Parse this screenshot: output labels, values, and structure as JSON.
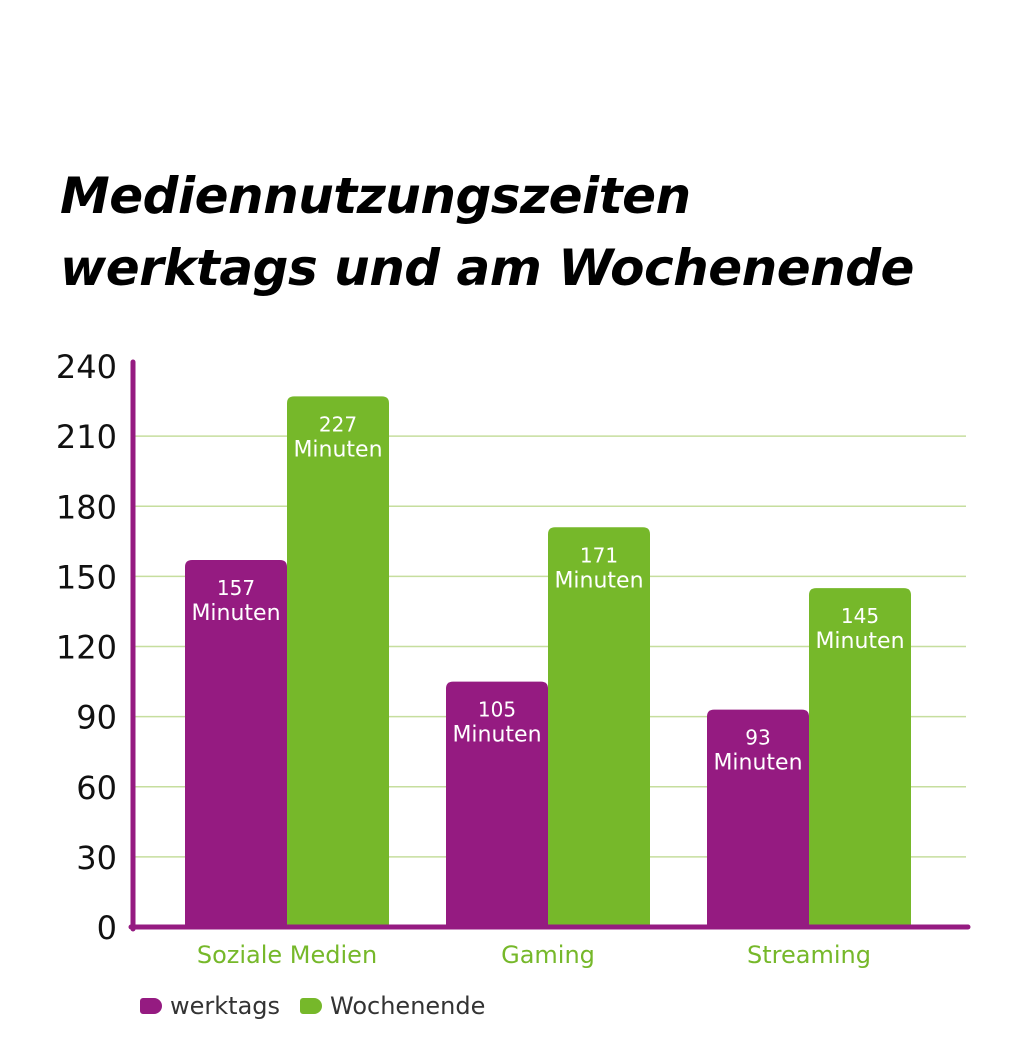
{
  "title": {
    "line1": "Mediennutzungszeiten",
    "line2": "werktags und am Wochenende"
  },
  "colors": {
    "werktags": "#951B81",
    "wochenende": "#76B82A",
    "grid": "#C6DE9E",
    "axis": "#951B81",
    "category_label": "#76B82A",
    "bar_label": "#ffffff"
  },
  "chart_data": {
    "type": "bar",
    "categories": [
      "Soziale Medien",
      "Gaming",
      "Streaming"
    ],
    "series": [
      {
        "name": "werktags",
        "values": [
          157,
          105,
          93
        ],
        "labels": [
          "157",
          "105",
          "93"
        ]
      },
      {
        "name": "Wochenende",
        "values": [
          227,
          171,
          145
        ],
        "labels": [
          "227",
          "171",
          "145"
        ]
      }
    ],
    "value_unit_label": "Minuten",
    "ylim": [
      0,
      240
    ],
    "yticks": [
      "0",
      "30",
      "60",
      "90",
      "120",
      "150",
      "180",
      "210",
      "240"
    ],
    "grid": true,
    "legend_position": "bottom-left"
  },
  "legend": {
    "werktags": "werktags",
    "wochenende": "Wochenende"
  }
}
